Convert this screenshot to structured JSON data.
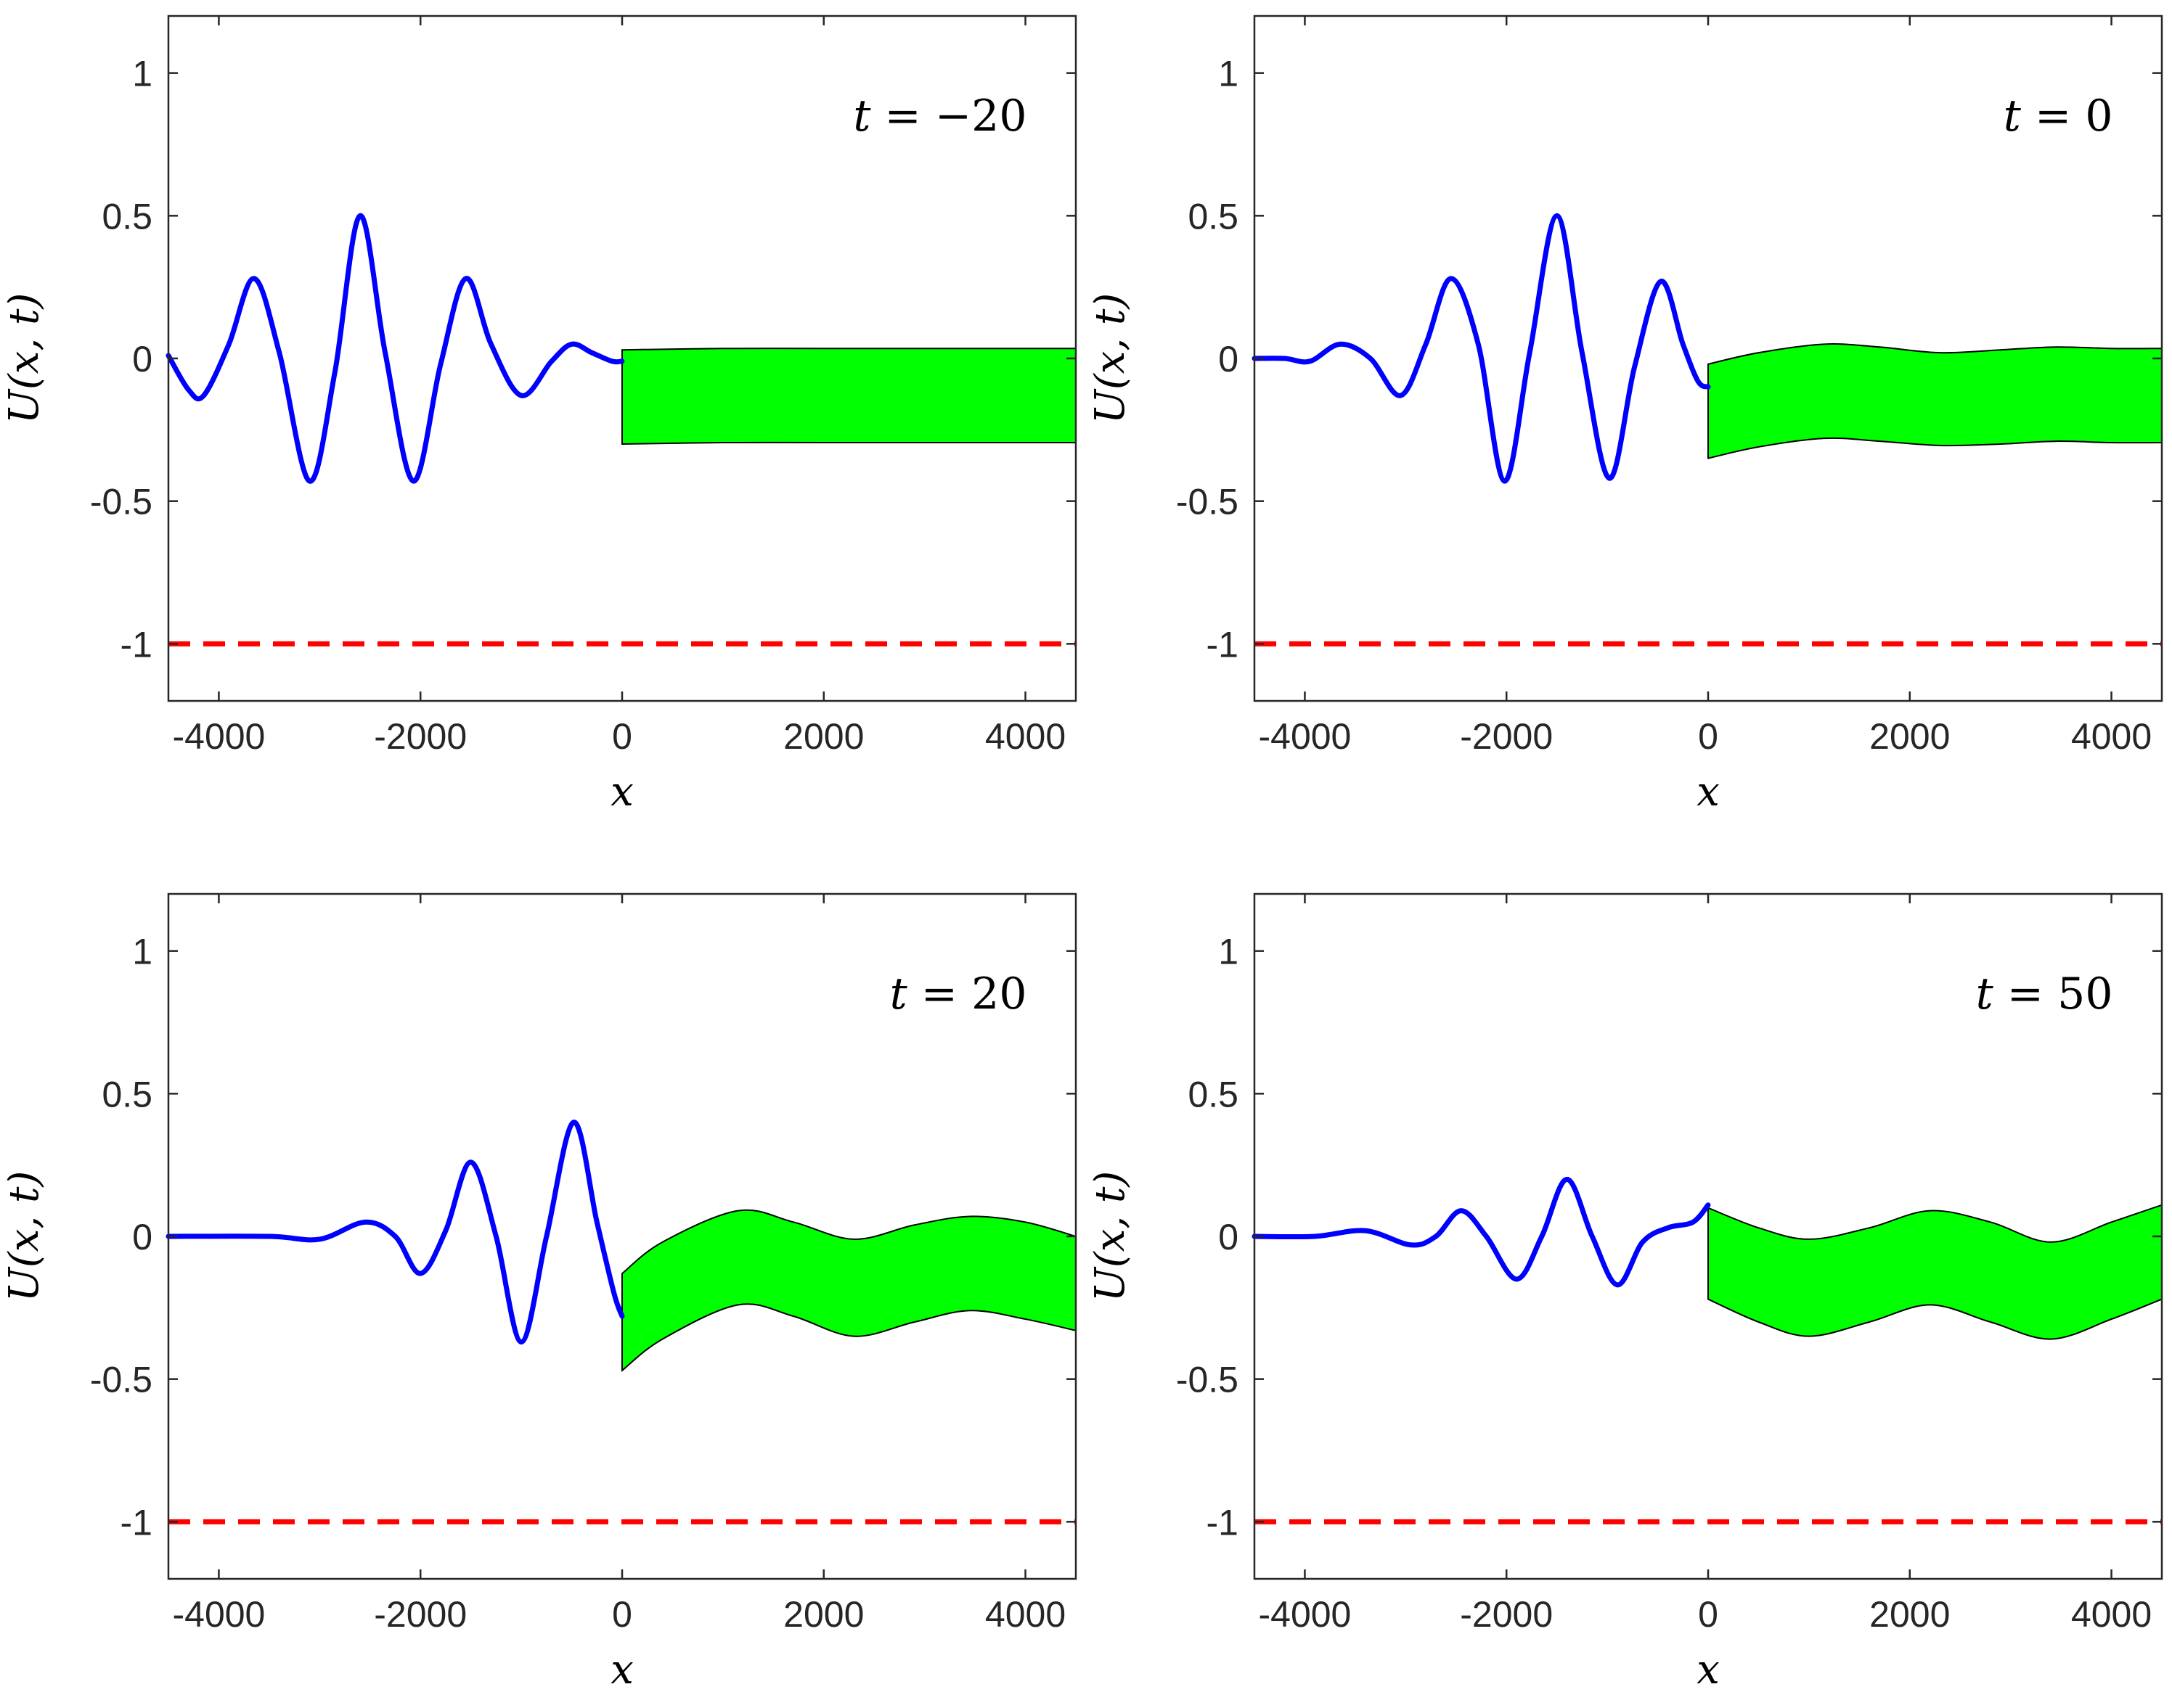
{
  "chart_data": [
    {
      "type": "line",
      "panel": "top-left",
      "annotation": {
        "var": "t",
        "op": " = ",
        "value": "−20"
      },
      "xlabel": "x",
      "ylabel": "U(x, t)",
      "xlim": [
        -4500,
        4500
      ],
      "ylim": [
        -1.2,
        1.2
      ],
      "xticks": [
        -4000,
        -2000,
        0,
        2000,
        4000
      ],
      "xtick_labels": [
        "-4000",
        "-2000",
        "0",
        "2000",
        "4000"
      ],
      "yticks": [
        -1,
        -0.5,
        0,
        0.5,
        1
      ],
      "ytick_labels": [
        "-1",
        "-0.5",
        "0",
        "0.5",
        "1"
      ],
      "wave": {
        "color": "#0000ff",
        "x": [
          -4500,
          -4300,
          -4150,
          -3900,
          -3650,
          -3400,
          -3100,
          -2850,
          -2600,
          -2350,
          -2070,
          -1800,
          -1550,
          -1300,
          -1000,
          -700,
          -500,
          -300,
          -100,
          0
        ],
        "y": [
          0.01,
          -0.11,
          -0.13,
          0.05,
          0.28,
          0.02,
          -0.43,
          -0.05,
          0.5,
          0.02,
          -0.43,
          -0.02,
          0.28,
          0.05,
          -0.13,
          -0.01,
          0.05,
          0.02,
          -0.01,
          -0.01
        ]
      },
      "band": {
        "color": "#00ff00",
        "x": [
          0,
          1000,
          2000,
          3000,
          4000,
          4500
        ],
        "upper": [
          0.03,
          0.035,
          0.035,
          0.035,
          0.035,
          0.035
        ],
        "lower": [
          -0.3,
          -0.295,
          -0.295,
          -0.295,
          -0.295,
          -0.295
        ]
      },
      "reference_line": {
        "color": "#ff0000",
        "style": "dashed",
        "y": -1
      }
    },
    {
      "type": "line",
      "panel": "top-right",
      "annotation": {
        "var": "t",
        "op": " = ",
        "value": "0"
      },
      "xlabel": "x",
      "ylabel": "U(x, t)",
      "xlim": [
        -4500,
        4500
      ],
      "ylim": [
        -1.2,
        1.2
      ],
      "xticks": [
        -4000,
        -2000,
        0,
        2000,
        4000
      ],
      "xtick_labels": [
        "-4000",
        "-2000",
        "0",
        "2000",
        "4000"
      ],
      "yticks": [
        -1,
        -0.5,
        0,
        0.5,
        1
      ],
      "ytick_labels": [
        "-1",
        "-0.5",
        "0",
        "0.5",
        "1"
      ],
      "wave": {
        "color": "#0000ff",
        "x": [
          -4500,
          -4200,
          -3950,
          -3650,
          -3350,
          -3050,
          -2800,
          -2550,
          -2280,
          -2020,
          -1770,
          -1500,
          -1250,
          -980,
          -730,
          -470,
          -250,
          -100,
          0
        ],
        "y": [
          0.0,
          0.0,
          -0.01,
          0.05,
          0.0,
          -0.13,
          0.05,
          0.28,
          0.05,
          -0.43,
          0.02,
          0.5,
          0.02,
          -0.42,
          -0.03,
          0.27,
          0.05,
          -0.08,
          -0.1
        ]
      },
      "band": {
        "color": "#00ff00",
        "x": [
          0,
          500,
          1150,
          1700,
          2300,
          2900,
          3450,
          4000,
          4500
        ],
        "upper": [
          -0.02,
          0.02,
          0.05,
          0.04,
          0.02,
          0.03,
          0.04,
          0.035,
          0.035
        ],
        "lower": [
          -0.35,
          -0.31,
          -0.28,
          -0.29,
          -0.305,
          -0.3,
          -0.29,
          -0.295,
          -0.295
        ]
      },
      "reference_line": {
        "color": "#ff0000",
        "style": "dashed",
        "y": -1
      }
    },
    {
      "type": "line",
      "panel": "bottom-left",
      "annotation": {
        "var": "t",
        "op": " = ",
        "value": "20"
      },
      "xlabel": "x",
      "ylabel": "U(x, t)",
      "xlim": [
        -4500,
        4500
      ],
      "ylim": [
        -1.2,
        1.2
      ],
      "xticks": [
        -4000,
        -2000,
        0,
        2000,
        4000
      ],
      "xtick_labels": [
        "-4000",
        "-2000",
        "0",
        "2000",
        "4000"
      ],
      "yticks": [
        -1,
        -0.5,
        0,
        0.5,
        1
      ],
      "ytick_labels": [
        "-1",
        "-0.5",
        "0",
        "0.5",
        "1"
      ],
      "wave": {
        "color": "#0000ff",
        "x": [
          -4500,
          -3500,
          -3000,
          -2550,
          -2250,
          -2000,
          -1750,
          -1500,
          -1250,
          -1000,
          -750,
          -480,
          -250,
          -80,
          0
        ],
        "y": [
          0.0,
          0.0,
          -0.01,
          0.05,
          0.0,
          -0.13,
          0.02,
          0.26,
          0.0,
          -0.37,
          0.0,
          0.4,
          0.05,
          -0.2,
          -0.28
        ]
      },
      "band": {
        "color": "#00ff00",
        "x": [
          0,
          400,
          1150,
          1700,
          2300,
          2900,
          3450,
          4000,
          4500
        ],
        "upper": [
          -0.13,
          -0.02,
          0.09,
          0.05,
          -0.01,
          0.04,
          0.07,
          0.05,
          0.0
        ],
        "lower": [
          -0.47,
          -0.36,
          -0.24,
          -0.28,
          -0.35,
          -0.3,
          -0.26,
          -0.29,
          -0.33
        ]
      },
      "reference_line": {
        "color": "#ff0000",
        "style": "dashed",
        "y": -1
      }
    },
    {
      "type": "line",
      "panel": "bottom-right",
      "annotation": {
        "var": "t",
        "op": " = ",
        "value": "50"
      },
      "xlabel": "x",
      "ylabel": "U(x, t)",
      "xlim": [
        -4500,
        4500
      ],
      "ylim": [
        -1.2,
        1.2
      ],
      "xticks": [
        -4000,
        -2000,
        0,
        2000,
        4000
      ],
      "xtick_labels": [
        "-4000",
        "-2000",
        "0",
        "2000",
        "4000"
      ],
      "yticks": [
        -1,
        -0.5,
        0,
        0.5,
        1
      ],
      "ytick_labels": [
        "-1",
        "-0.5",
        "0",
        "0.5",
        "1"
      ],
      "wave": {
        "color": "#0000ff",
        "x": [
          -4500,
          -3900,
          -3400,
          -2950,
          -2700,
          -2450,
          -2200,
          -1900,
          -1650,
          -1400,
          -1150,
          -900,
          -650,
          -400,
          -150,
          0
        ],
        "y": [
          0.0,
          0.0,
          0.02,
          -0.03,
          0.0,
          0.09,
          0.0,
          -0.15,
          0.0,
          0.2,
          0.0,
          -0.17,
          -0.02,
          0.03,
          0.05,
          0.11
        ]
      },
      "band": {
        "color": "#00ff00",
        "x": [
          0,
          500,
          1000,
          1600,
          2200,
          2800,
          3400,
          4000,
          4500
        ],
        "upper": [
          0.1,
          0.03,
          -0.01,
          0.03,
          0.09,
          0.05,
          -0.02,
          0.05,
          0.11
        ],
        "lower": [
          -0.22,
          -0.3,
          -0.35,
          -0.3,
          -0.24,
          -0.3,
          -0.36,
          -0.29,
          -0.22
        ]
      },
      "reference_line": {
        "color": "#ff0000",
        "style": "dashed",
        "y": -1
      }
    }
  ]
}
